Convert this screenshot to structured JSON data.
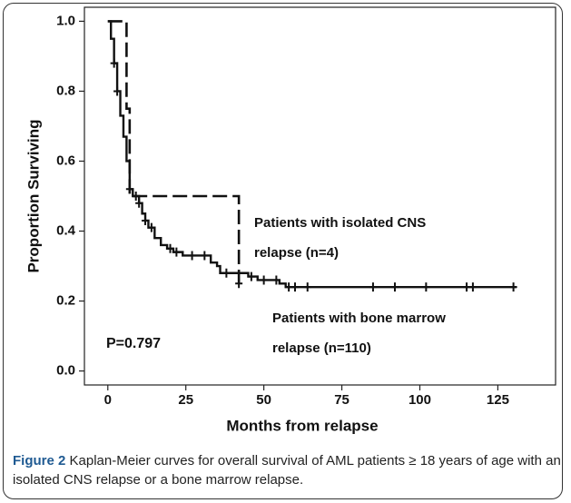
{
  "chart_data": {
    "type": "step",
    "x_label": "Months from relapse",
    "y_label": "Proportion Surviving",
    "xlim": [
      -7.5,
      143.5
    ],
    "ylim": [
      -0.04,
      1.04
    ],
    "xticks": [
      0,
      25,
      50,
      75,
      100,
      125
    ],
    "yticks": [
      {
        "value": 0,
        "label": "0.0"
      },
      0.2,
      0.4,
      0.6,
      0.8,
      {
        "value": 1,
        "label": "1.0"
      }
    ],
    "series": [
      {
        "name": [
          "Patients with isolated CNS",
          "relapse (n=4)"
        ],
        "color": "#111",
        "dash": true,
        "x": [
          0,
          6,
          7,
          42
        ],
        "values": [
          1.0,
          0.75,
          0.5,
          0.25
        ],
        "censored": {
          "x": [
            42
          ],
          "values": [
            0.25
          ]
        }
      },
      {
        "name": [
          "Patients with bone marrow",
          "relapse (n=110)"
        ],
        "color": "#111",
        "dash": false,
        "x": [
          0,
          1,
          2,
          3,
          4,
          5,
          6,
          7,
          8,
          10,
          11,
          12,
          13,
          15,
          17,
          19,
          21,
          24,
          33,
          35,
          36,
          45,
          48,
          55,
          57,
          131
        ],
        "values": [
          1.0,
          0.95,
          0.88,
          0.8,
          0.73,
          0.67,
          0.6,
          0.52,
          0.5,
          0.48,
          0.45,
          0.43,
          0.41,
          0.38,
          0.36,
          0.35,
          0.34,
          0.33,
          0.31,
          0.3,
          0.28,
          0.27,
          0.26,
          0.25,
          0.24,
          0.24
        ],
        "censored": {
          "x": [
            2,
            3,
            7,
            9,
            10,
            12,
            14,
            20,
            22,
            27,
            31,
            38,
            46,
            50,
            54,
            58,
            60,
            64,
            85,
            92,
            102,
            115,
            117,
            130
          ],
          "values": [
            0.88,
            0.8,
            0.52,
            0.5,
            0.48,
            0.43,
            0.41,
            0.35,
            0.34,
            0.33,
            0.33,
            0.28,
            0.27,
            0.26,
            0.26,
            0.24,
            0.24,
            0.24,
            0.24,
            0.24,
            0.24,
            0.24,
            0.24,
            0.24
          ]
        }
      }
    ],
    "p_value_label": "P=0.797",
    "caption_label": "Figure 2",
    "caption_text": "Kaplan-Meier curves for overall survival of AML patients ≥ 18 years of age with an isolated CNS relapse or a bone marrow relapse."
  }
}
